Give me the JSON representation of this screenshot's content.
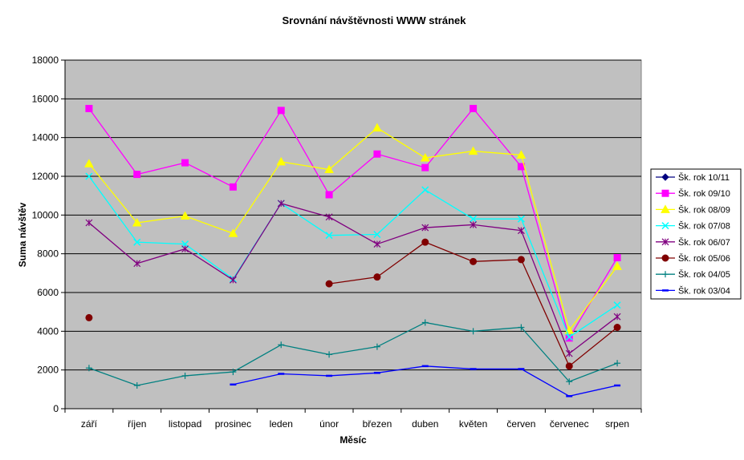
{
  "chart_data": {
    "type": "line",
    "title": "Srovnání návštěvnosti  WWW stránek",
    "xlabel": "Měsíc",
    "ylabel": "Suma návštěv",
    "ylim": [
      0,
      18000
    ],
    "yticks": [
      0,
      2000,
      4000,
      6000,
      8000,
      10000,
      12000,
      14000,
      16000,
      18000
    ],
    "grid": true,
    "legend_position": "right",
    "categories": [
      "září",
      "říjen",
      "listopad",
      "prosinec",
      "leden",
      "únor",
      "březen",
      "duben",
      "květen",
      "červen",
      "červenec",
      "srpen"
    ],
    "series": [
      {
        "name": "Šk. rok 10/11",
        "color": "#000080",
        "marker": "diamond",
        "values": [
          null,
          null,
          null,
          null,
          null,
          null,
          null,
          null,
          null,
          null,
          null,
          null
        ]
      },
      {
        "name": "Šk. rok 09/10",
        "color": "#FF00FF",
        "marker": "square",
        "values": [
          15500,
          12100,
          12700,
          11450,
          15400,
          11050,
          13150,
          12450,
          15500,
          12500,
          3650,
          7800
        ]
      },
      {
        "name": "Šk. rok 08/09",
        "color": "#FFFF00",
        "marker": "triangle",
        "values": [
          12650,
          9600,
          9950,
          9050,
          12750,
          12350,
          14500,
          12950,
          13300,
          13100,
          4050,
          7350
        ]
      },
      {
        "name": "Šk. rok 07/08",
        "color": "#00FFFF",
        "marker": "x",
        "values": [
          12000,
          8600,
          8500,
          6700,
          10600,
          8950,
          9000,
          11300,
          9800,
          9800,
          3700,
          5350
        ]
      },
      {
        "name": "Šk. rok 06/07",
        "color": "#800080",
        "marker": "star",
        "values": [
          9600,
          7500,
          8250,
          6650,
          10600,
          9900,
          8500,
          9350,
          9500,
          9200,
          2850,
          4750
        ]
      },
      {
        "name": "Šk. rok 05/06",
        "color": "#800000",
        "marker": "circle",
        "values": [
          4700,
          null,
          null,
          null,
          null,
          6450,
          6800,
          8600,
          7600,
          7700,
          2200,
          4200
        ]
      },
      {
        "name": "Šk. rok 04/05",
        "color": "#008080",
        "marker": "plus",
        "values": [
          2100,
          1200,
          1700,
          1900,
          3300,
          2800,
          3200,
          4450,
          4000,
          4200,
          1400,
          2350
        ]
      },
      {
        "name": "Šk. rok 03/04",
        "color": "#0000FF",
        "marker": "dash",
        "values": [
          null,
          null,
          null,
          1250,
          1800,
          1700,
          1850,
          2200,
          2050,
          2050,
          650,
          1200
        ]
      }
    ]
  }
}
